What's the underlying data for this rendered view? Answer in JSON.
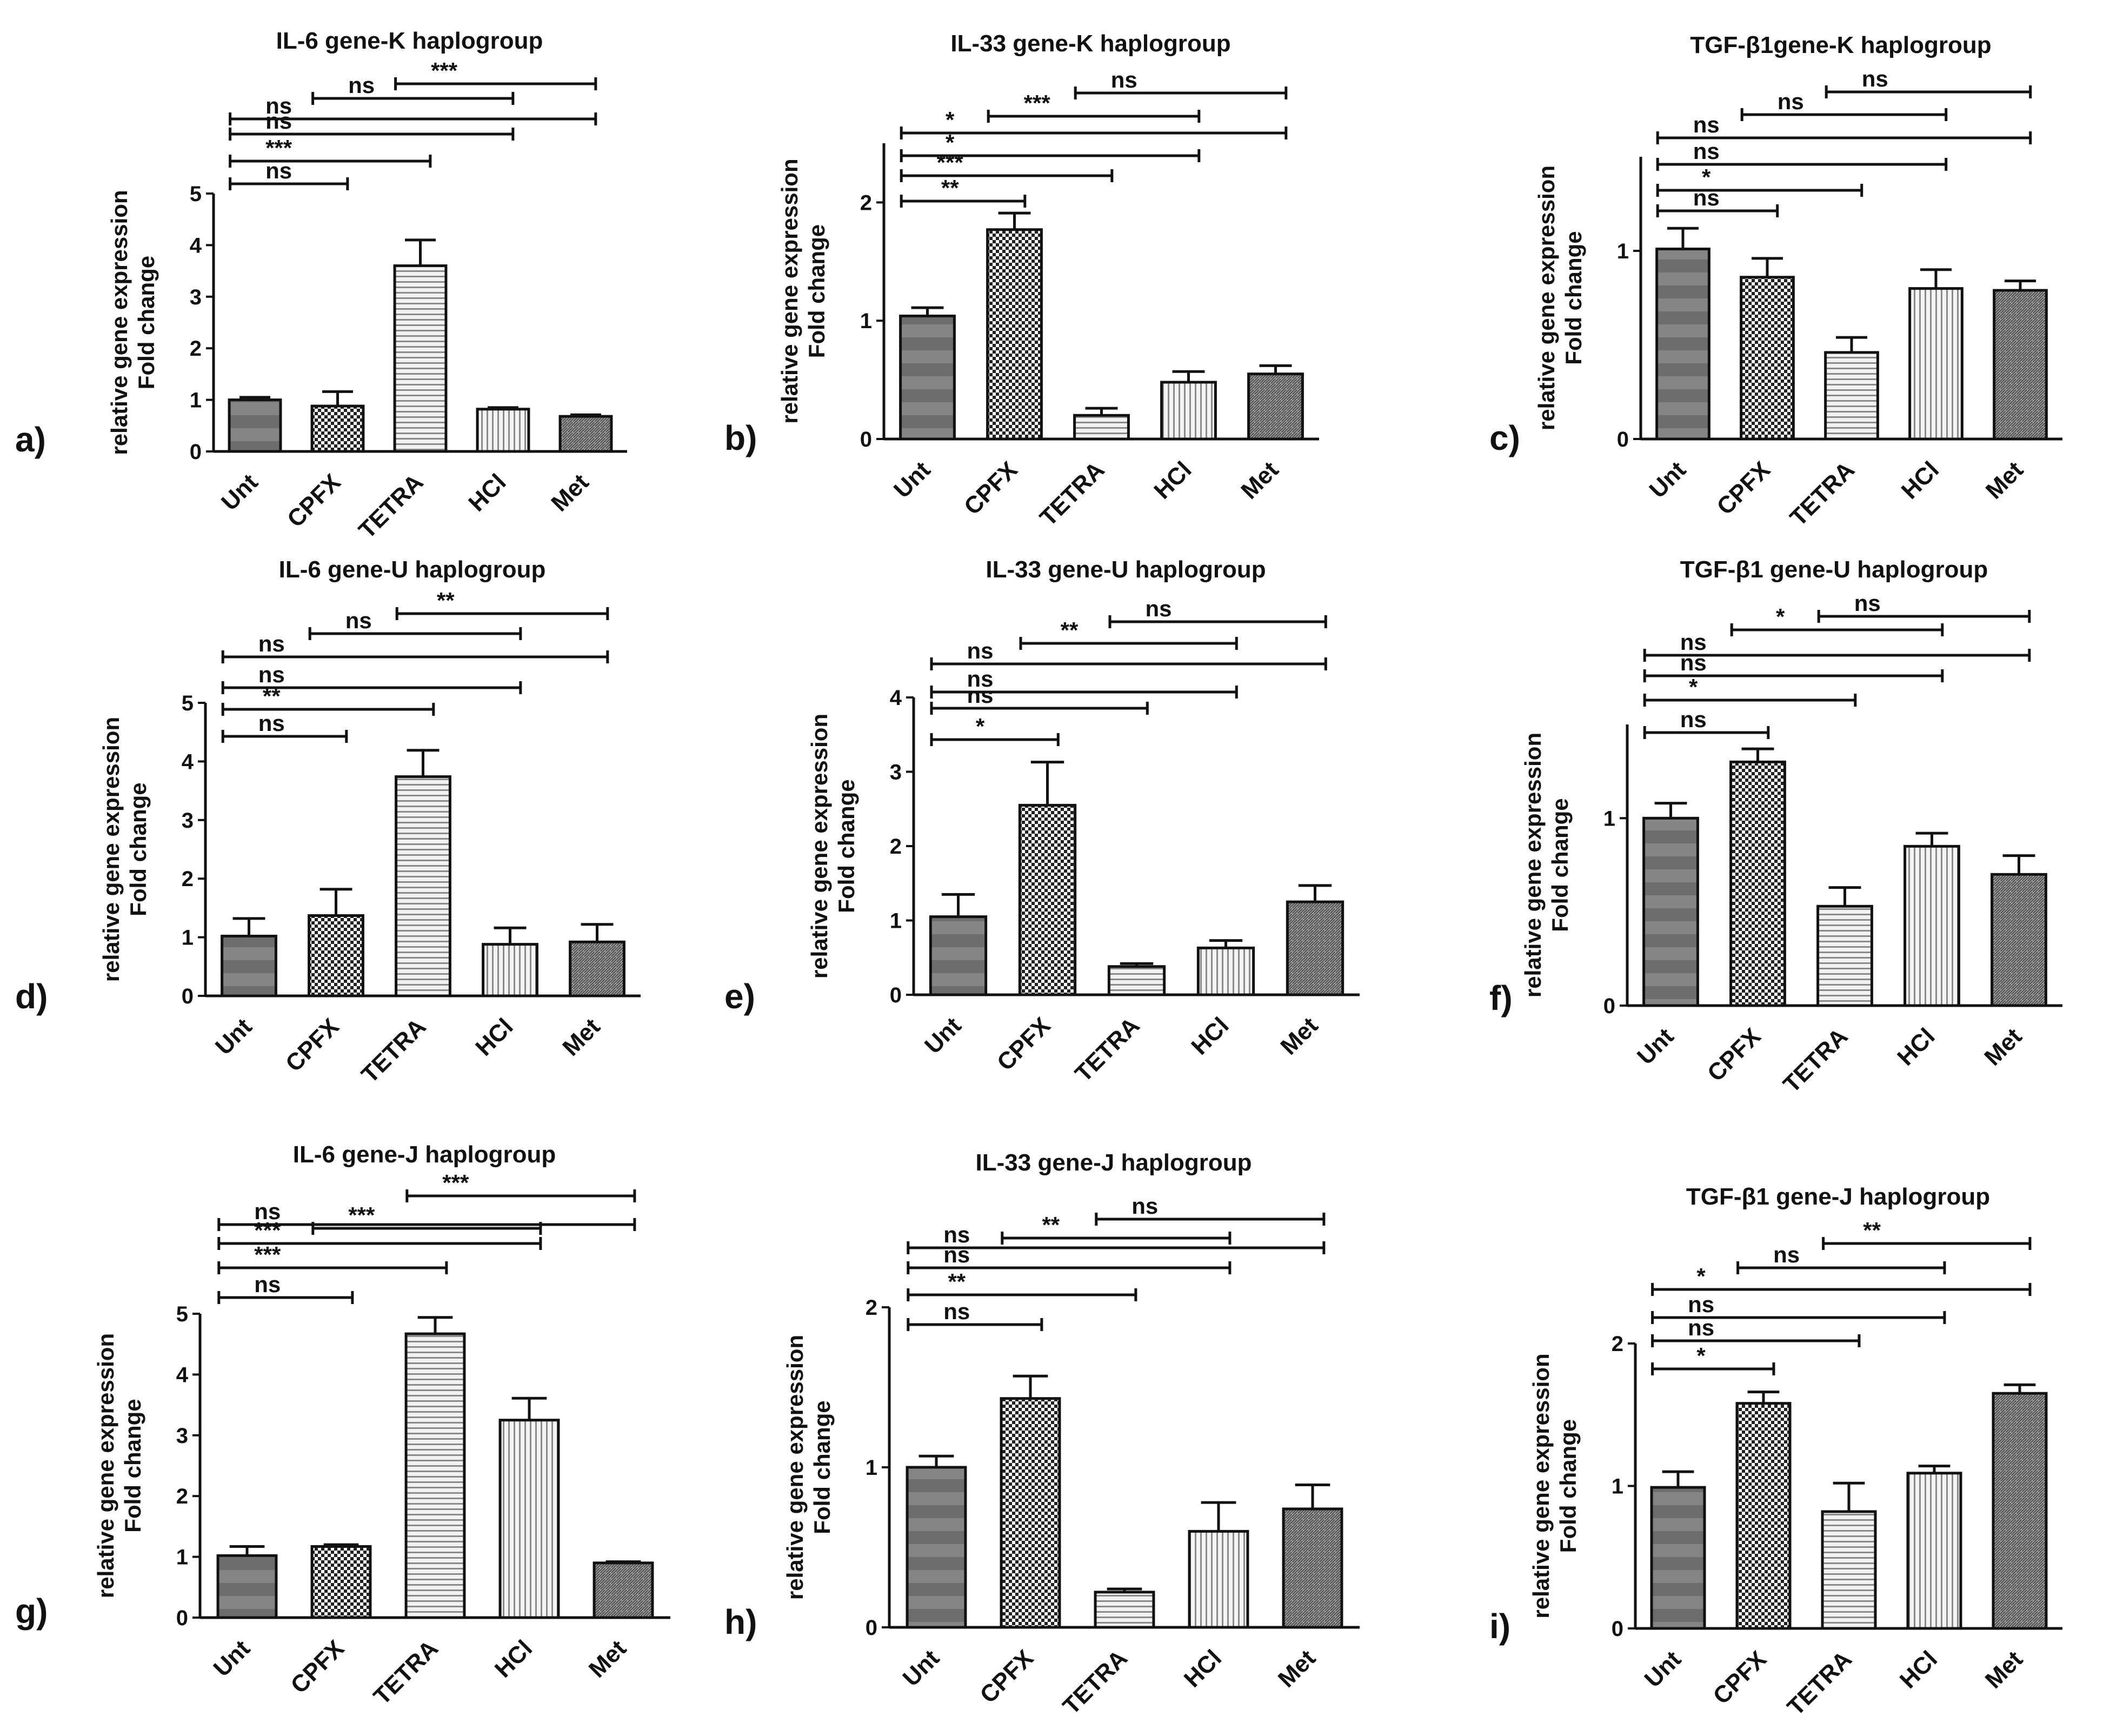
{
  "figure": {
    "categories": [
      "Unt",
      "CPFX",
      "TETRA",
      "HCl",
      "Met"
    ],
    "ylabel_line1": "relative gene expression",
    "ylabel_line2": "Fold change"
  },
  "chart_data": [
    {
      "panel": "a)",
      "type": "bar",
      "title": "IL-6 gene-K haplogroup",
      "categories": [
        "Unt",
        "CPFX",
        "TETRA",
        "HCl",
        "Met"
      ],
      "values": [
        1.0,
        0.88,
        3.6,
        0.82,
        0.68
      ],
      "errors": [
        0.05,
        0.28,
        0.5,
        0.03,
        0.03
      ],
      "yticks": [
        0,
        1,
        2,
        3,
        4,
        5
      ],
      "ylim": [
        0,
        5
      ],
      "ylabel": "relative gene expression Fold change",
      "comparisons": [
        {
          "from": "Unt",
          "to": "CPFX",
          "label": "ns"
        },
        {
          "from": "Unt",
          "to": "TETRA",
          "label": "***"
        },
        {
          "from": "Unt",
          "to": "HCl",
          "label": "ns"
        },
        {
          "from": "Unt",
          "to": "Met",
          "label": "ns"
        },
        {
          "from": "CPFX",
          "to": "HCl",
          "label": "ns"
        },
        {
          "from": "TETRA",
          "to": "Met",
          "label": "***"
        }
      ]
    },
    {
      "panel": "b)",
      "type": "bar",
      "title": "IL-33 gene-K haplogroup",
      "categories": [
        "Unt",
        "CPFX",
        "TETRA",
        "HCl",
        "Met"
      ],
      "values": [
        1.04,
        1.77,
        0.2,
        0.48,
        0.55
      ],
      "errors": [
        0.07,
        0.14,
        0.06,
        0.09,
        0.07
      ],
      "yticks": [
        0,
        1,
        2
      ],
      "ylim": [
        0,
        2.5
      ],
      "ylabel": "relative gene expression Fold change",
      "comparisons": [
        {
          "from": "Unt",
          "to": "CPFX",
          "label": "**"
        },
        {
          "from": "Unt",
          "to": "TETRA",
          "label": "***"
        },
        {
          "from": "Unt",
          "to": "HCl",
          "label": "*"
        },
        {
          "from": "Unt",
          "to": "Met",
          "label": "*"
        },
        {
          "from": "CPFX",
          "to": "HCl",
          "label": "***"
        },
        {
          "from": "TETRA",
          "to": "Met",
          "label": "ns"
        }
      ]
    },
    {
      "panel": "c)",
      "type": "bar",
      "title": "TGF-β1gene-K haplogroup",
      "categories": [
        "Unt",
        "CPFX",
        "TETRA",
        "HCl",
        "Met"
      ],
      "values": [
        1.01,
        0.86,
        0.46,
        0.8,
        0.79
      ],
      "errors": [
        0.11,
        0.1,
        0.08,
        0.1,
        0.05
      ],
      "yticks": [
        0,
        1
      ],
      "ylim": [
        0,
        1.5
      ],
      "ylabel": "relative gene expression Fold change",
      "comparisons": [
        {
          "from": "Unt",
          "to": "CPFX",
          "label": "ns"
        },
        {
          "from": "Unt",
          "to": "TETRA",
          "label": "*"
        },
        {
          "from": "Unt",
          "to": "HCl",
          "label": "ns"
        },
        {
          "from": "Unt",
          "to": "Met",
          "label": "ns"
        },
        {
          "from": "CPFX",
          "to": "HCl",
          "label": "ns"
        },
        {
          "from": "TETRA",
          "to": "Met",
          "label": "ns"
        }
      ]
    },
    {
      "panel": "d)",
      "type": "bar",
      "title": "IL-6 gene-U haplogroup",
      "categories": [
        "Unt",
        "CPFX",
        "TETRA",
        "HCl",
        "Met"
      ],
      "values": [
        1.02,
        1.37,
        3.74,
        0.88,
        0.92
      ],
      "errors": [
        0.3,
        0.45,
        0.45,
        0.28,
        0.3
      ],
      "yticks": [
        0,
        1,
        2,
        3,
        4,
        5
      ],
      "ylim": [
        0,
        5
      ],
      "ylabel": "relative gene expression Fold change",
      "comparisons": [
        {
          "from": "Unt",
          "to": "CPFX",
          "label": "ns"
        },
        {
          "from": "Unt",
          "to": "TETRA",
          "label": "**"
        },
        {
          "from": "Unt",
          "to": "HCl",
          "label": "ns"
        },
        {
          "from": "Unt",
          "to": "Met",
          "label": "ns"
        },
        {
          "from": "CPFX",
          "to": "HCl",
          "label": "ns"
        },
        {
          "from": "TETRA",
          "to": "Met",
          "label": "**"
        }
      ]
    },
    {
      "panel": "e)",
      "type": "bar",
      "title": "IL-33 gene-U haplogroup",
      "categories": [
        "Unt",
        "CPFX",
        "TETRA",
        "HCl",
        "Met"
      ],
      "values": [
        1.05,
        2.55,
        0.38,
        0.63,
        1.25
      ],
      "errors": [
        0.3,
        0.58,
        0.04,
        0.1,
        0.22
      ],
      "yticks": [
        0,
        1,
        2,
        3,
        4
      ],
      "ylim": [
        0,
        4
      ],
      "ylabel": "relative gene expression Fold change",
      "comparisons": [
        {
          "from": "Unt",
          "to": "CPFX",
          "label": "*"
        },
        {
          "from": "Unt",
          "to": "TETRA",
          "label": "ns"
        },
        {
          "from": "Unt",
          "to": "HCl",
          "label": "ns"
        },
        {
          "from": "Unt",
          "to": "Met",
          "label": "ns"
        },
        {
          "from": "CPFX",
          "to": "HCl",
          "label": "**"
        },
        {
          "from": "TETRA",
          "to": "Met",
          "label": "ns"
        }
      ]
    },
    {
      "panel": "f)",
      "type": "bar",
      "title": "TGF-β1 gene-U haplogroup",
      "categories": [
        "Unt",
        "CPFX",
        "TETRA",
        "HCl",
        "Met"
      ],
      "values": [
        1.0,
        1.3,
        0.53,
        0.85,
        0.7
      ],
      "errors": [
        0.08,
        0.07,
        0.1,
        0.07,
        0.1
      ],
      "yticks": [
        0,
        1
      ],
      "ylim": [
        0,
        1.5
      ],
      "ylabel": "relative gene expression Fold change",
      "comparisons": [
        {
          "from": "Unt",
          "to": "CPFX",
          "label": "ns"
        },
        {
          "from": "Unt",
          "to": "TETRA",
          "label": "*"
        },
        {
          "from": "Unt",
          "to": "HCl",
          "label": "ns"
        },
        {
          "from": "Unt",
          "to": "Met",
          "label": "ns"
        },
        {
          "from": "CPFX",
          "to": "HCl",
          "label": "*"
        },
        {
          "from": "TETRA",
          "to": "Met",
          "label": "ns"
        }
      ]
    },
    {
      "panel": "g)",
      "type": "bar",
      "title": "IL-6 gene-J haplogroup",
      "categories": [
        "Unt",
        "CPFX",
        "TETRA",
        "HCl",
        "Met"
      ],
      "values": [
        1.02,
        1.17,
        4.67,
        3.25,
        0.9
      ],
      "errors": [
        0.15,
        0.03,
        0.27,
        0.36,
        0.02
      ],
      "yticks": [
        0,
        1,
        2,
        3,
        4,
        5
      ],
      "ylim": [
        0,
        5
      ],
      "ylabel": "relative gene expression Fold change",
      "comparisons": [
        {
          "from": "Unt",
          "to": "CPFX",
          "label": "ns"
        },
        {
          "from": "Unt",
          "to": "TETRA",
          "label": "***"
        },
        {
          "from": "Unt",
          "to": "HCl",
          "label": "***"
        },
        {
          "from": "Unt",
          "to": "Met",
          "label": "ns"
        },
        {
          "from": "CPFX",
          "to": "HCl",
          "label": "***"
        },
        {
          "from": "TETRA",
          "to": "Met",
          "label": "***"
        }
      ]
    },
    {
      "panel": "h)",
      "type": "bar",
      "title": "IL-33 gene-J haplogroup",
      "categories": [
        "Unt",
        "CPFX",
        "TETRA",
        "HCl",
        "Met"
      ],
      "values": [
        1.0,
        1.43,
        0.22,
        0.6,
        0.74
      ],
      "errors": [
        0.07,
        0.14,
        0.02,
        0.18,
        0.15
      ],
      "yticks": [
        0,
        1,
        2
      ],
      "ylim": [
        0,
        2
      ],
      "ylabel": "relative gene expression Fold change",
      "comparisons": [
        {
          "from": "Unt",
          "to": "CPFX",
          "label": "ns"
        },
        {
          "from": "Unt",
          "to": "TETRA",
          "label": "**"
        },
        {
          "from": "Unt",
          "to": "HCl",
          "label": "ns"
        },
        {
          "from": "Unt",
          "to": "Met",
          "label": "ns"
        },
        {
          "from": "CPFX",
          "to": "HCl",
          "label": "**"
        },
        {
          "from": "TETRA",
          "to": "Met",
          "label": "ns"
        }
      ]
    },
    {
      "panel": "i)",
      "type": "bar",
      "title": "TGF-β1 gene-J haplogroup",
      "categories": [
        "Unt",
        "CPFX",
        "TETRA",
        "HCl",
        "Met"
      ],
      "values": [
        0.99,
        1.58,
        0.82,
        1.09,
        1.65
      ],
      "errors": [
        0.11,
        0.08,
        0.2,
        0.05,
        0.06
      ],
      "yticks": [
        0,
        1,
        2
      ],
      "ylim": [
        0,
        2
      ],
      "ylabel": "relative gene expression Fold change",
      "comparisons": [
        {
          "from": "Unt",
          "to": "CPFX",
          "label": "*"
        },
        {
          "from": "Unt",
          "to": "TETRA",
          "label": "ns"
        },
        {
          "from": "Unt",
          "to": "HCl",
          "label": "ns"
        },
        {
          "from": "Unt",
          "to": "Met",
          "label": "*"
        },
        {
          "from": "CPFX",
          "to": "HCl",
          "label": "ns"
        },
        {
          "from": "TETRA",
          "to": "Met",
          "label": "**"
        }
      ]
    }
  ]
}
